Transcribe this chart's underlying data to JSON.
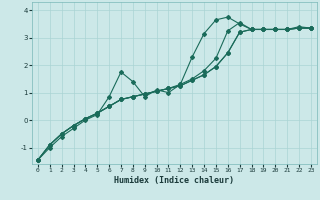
{
  "title": "",
  "xlabel": "Humidex (Indice chaleur)",
  "background_color": "#cce8e8",
  "line_color": "#1a6b5a",
  "grid_color": "#aad4d4",
  "xlim": [
    -0.5,
    23.5
  ],
  "ylim": [
    -1.6,
    4.3
  ],
  "xticks": [
    0,
    1,
    2,
    3,
    4,
    5,
    6,
    7,
    8,
    9,
    10,
    11,
    12,
    13,
    14,
    15,
    16,
    17,
    18,
    19,
    20,
    21,
    22,
    23
  ],
  "yticks": [
    -1,
    0,
    1,
    2,
    3,
    4
  ],
  "series1_x": [
    0,
    1,
    2,
    3,
    4,
    5,
    6,
    7,
    8,
    9,
    10,
    11,
    12,
    13,
    14,
    15,
    16,
    17,
    18,
    19,
    20,
    21,
    22,
    23
  ],
  "series1_y": [
    -1.45,
    -1.0,
    -0.6,
    -0.3,
    0.0,
    0.2,
    0.85,
    1.75,
    1.4,
    0.85,
    1.1,
    1.0,
    1.3,
    2.3,
    3.15,
    3.65,
    3.75,
    3.5,
    3.3,
    3.3,
    3.3,
    3.3,
    3.4,
    3.35
  ],
  "series2_x": [
    0,
    1,
    2,
    3,
    4,
    5,
    6,
    7,
    8,
    9,
    10,
    11,
    12,
    13,
    14,
    15,
    16,
    17,
    18,
    19,
    20,
    21,
    22,
    23
  ],
  "series2_y": [
    -1.45,
    -0.9,
    -0.5,
    -0.2,
    0.05,
    0.25,
    0.5,
    0.75,
    0.85,
    0.95,
    1.05,
    1.15,
    1.25,
    1.45,
    1.65,
    1.95,
    2.45,
    3.2,
    3.3,
    3.3,
    3.3,
    3.3,
    3.35,
    3.35
  ],
  "series3_x": [
    0,
    1,
    2,
    3,
    4,
    5,
    6,
    7,
    8,
    9,
    10,
    11,
    12,
    13,
    14,
    15,
    16,
    17,
    18,
    19,
    20,
    21,
    22,
    23
  ],
  "series3_y": [
    -1.45,
    -0.9,
    -0.5,
    -0.2,
    0.05,
    0.25,
    0.5,
    0.75,
    0.85,
    0.95,
    1.05,
    1.15,
    1.3,
    1.5,
    1.8,
    2.25,
    3.25,
    3.55,
    3.3,
    3.3,
    3.3,
    3.3,
    3.35,
    3.35
  ],
  "series4_x": [
    0,
    1,
    2,
    3,
    4,
    5,
    6,
    7,
    8,
    9,
    10,
    11,
    12,
    13,
    14,
    15,
    16,
    17,
    18,
    19,
    20,
    21,
    22,
    23
  ],
  "series4_y": [
    -1.45,
    -0.9,
    -0.5,
    -0.2,
    0.05,
    0.25,
    0.5,
    0.75,
    0.85,
    0.95,
    1.05,
    1.15,
    1.25,
    1.45,
    1.65,
    1.95,
    2.45,
    3.2,
    3.3,
    3.3,
    3.3,
    3.3,
    3.35,
    3.35
  ]
}
